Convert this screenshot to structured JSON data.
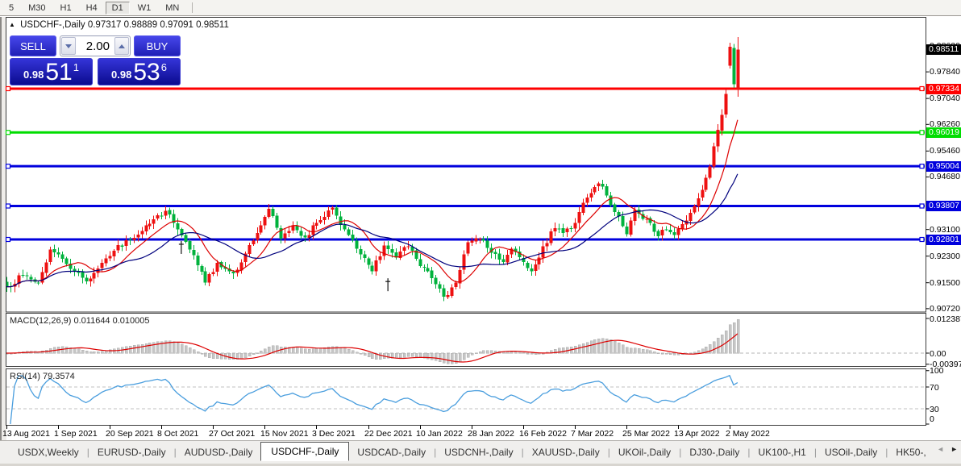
{
  "toolbar": {
    "timeframes": [
      "5",
      "M30",
      "H1",
      "H4",
      "D1",
      "W1",
      "MN"
    ],
    "active_timeframe": "D1"
  },
  "chart": {
    "title_symbol": "USDCHF-,Daily",
    "title_ohlc": "0.97317 0.98889 0.97091 0.98511",
    "collapse_icon": "▲"
  },
  "trade_panel": {
    "sell_label": "SELL",
    "buy_label": "BUY",
    "volume": "2.00",
    "sell_price": {
      "prefix": "0.98",
      "main": "51",
      "pip": "1"
    },
    "buy_price": {
      "prefix": "0.98",
      "main": "53",
      "pip": "6"
    }
  },
  "price_axis": {
    "grid_labels": [
      "0.98620",
      "0.97840",
      "0.97040",
      "0.96260",
      "0.95460",
      "0.94680",
      "0.93100",
      "0.92300",
      "0.91500",
      "0.90720"
    ],
    "badges": [
      {
        "label": "0.98511",
        "value": 0.98511,
        "color": "#000000"
      },
      {
        "label": "0.97334",
        "value": 0.97334,
        "color": "#fe0000"
      },
      {
        "label": "0.96019",
        "value": 0.96019,
        "color": "#00dd00"
      },
      {
        "label": "0.95004",
        "value": 0.95004,
        "color": "#0000dd"
      },
      {
        "label": "0.93807",
        "value": 0.93807,
        "color": "#0000dd"
      },
      {
        "label": "0.92801",
        "value": 0.92801,
        "color": "#0000dd"
      }
    ]
  },
  "macd_panel": {
    "name": "MACD(12,26,9)",
    "values": "0.011644 0.010005",
    "scale_labels": [
      "0.012387",
      "0.00",
      "-0.00397"
    ]
  },
  "rsi_panel": {
    "name": "RSI(14)",
    "value": "79.3574",
    "scale_labels": [
      "100",
      "70",
      "30",
      "0"
    ]
  },
  "time_axis": {
    "labels": [
      "13 Aug 2021",
      "1 Sep 2021",
      "20 Sep 2021",
      "8 Oct 2021",
      "27 Oct 2021",
      "15 Nov 2021",
      "3 Dec 2021",
      "22 Dec 2021",
      "10 Jan 2022",
      "28 Jan 2022",
      "16 Feb 2022",
      "7 Mar 2022",
      "25 Mar 2022",
      "13 Apr 2022",
      "2 May 2022"
    ]
  },
  "tab_bar": {
    "tabs": [
      "USDX,Weekly",
      "EURUSD-,Daily",
      "AUDUSD-,Daily",
      "USDCHF-,Daily",
      "USDCAD-,Daily",
      "USDCNH-,Daily",
      "XAUUSD-,Daily",
      "UKOil-,Daily",
      "DJ30-,Daily",
      "UK100-,H1",
      "USOil-,Daily",
      "HK50-,"
    ],
    "active_index": 3,
    "scroll_left": "◄",
    "scroll_right": "►"
  },
  "chart_data": {
    "type": "candlestick",
    "symbol": "USDCHF-",
    "timeframe": "Daily",
    "current": {
      "open": 0.97317,
      "high": 0.98889,
      "low": 0.97091,
      "close": 0.98511,
      "bid": 0.98511
    },
    "bars": 185,
    "bars_per_time_tick": 13,
    "price_scale_ticks": [
      0.9862,
      0.9784,
      0.9704,
      0.9626,
      0.9546,
      0.9468,
      0.931,
      0.923,
      0.915,
      0.9072
    ],
    "horizontal_lines": [
      {
        "price": 0.97334,
        "color": "#fe0000",
        "width": 3
      },
      {
        "price": 0.96019,
        "color": "#00dd00",
        "width": 3
      },
      {
        "price": 0.95004,
        "color": "#0000dd",
        "width": 3
      },
      {
        "price": 0.93807,
        "color": "#0000dd",
        "width": 3
      },
      {
        "price": 0.92801,
        "color": "#0000dd",
        "width": 3
      }
    ],
    "moving_averages": [
      {
        "period": 10,
        "color": "#dd0000"
      },
      {
        "period": 21,
        "color": "#00007d"
      }
    ],
    "macd": {
      "fast": 12,
      "slow": 26,
      "signal": 9,
      "current_macd": 0.011644,
      "current_signal": 0.010005,
      "scale_max": 0.012387,
      "scale_min": -0.00397
    },
    "rsi": {
      "period": 14,
      "current": 79.3574,
      "levels": [
        70,
        30
      ],
      "scale_min": 0,
      "scale_max": 100
    },
    "swing_points_bar_price": [
      [
        0,
        0.9138
      ],
      [
        4,
        0.9172
      ],
      [
        8,
        0.9148
      ],
      [
        11,
        0.925
      ],
      [
        14,
        0.9222
      ],
      [
        17,
        0.9186
      ],
      [
        20,
        0.9154
      ],
      [
        24,
        0.921
      ],
      [
        27,
        0.9246
      ],
      [
        31,
        0.928
      ],
      [
        35,
        0.9322
      ],
      [
        40,
        0.9366
      ],
      [
        43,
        0.931
      ],
      [
        46,
        0.925
      ],
      [
        50,
        0.915
      ],
      [
        53,
        0.921
      ],
      [
        57,
        0.9178
      ],
      [
        60,
        0.9238
      ],
      [
        63,
        0.93
      ],
      [
        66,
        0.9372
      ],
      [
        69,
        0.9282
      ],
      [
        72,
        0.9322
      ],
      [
        75,
        0.9286
      ],
      [
        78,
        0.933
      ],
      [
        82,
        0.9376
      ],
      [
        85,
        0.931
      ],
      [
        88,
        0.9252
      ],
      [
        92,
        0.9184
      ],
      [
        95,
        0.9262
      ],
      [
        98,
        0.9226
      ],
      [
        101,
        0.926
      ],
      [
        104,
        0.92
      ],
      [
        107,
        0.9164
      ],
      [
        110,
        0.9108
      ],
      [
        113,
        0.915
      ],
      [
        116,
        0.9272
      ],
      [
        119,
        0.9282
      ],
      [
        122,
        0.924
      ],
      [
        125,
        0.9212
      ],
      [
        127,
        0.9252
      ],
      [
        130,
        0.9212
      ],
      [
        132,
        0.9184
      ],
      [
        135,
        0.926
      ],
      [
        138,
        0.9314
      ],
      [
        140,
        0.93
      ],
      [
        143,
        0.933
      ],
      [
        145,
        0.939
      ],
      [
        147,
        0.942
      ],
      [
        149,
        0.9448
      ],
      [
        151,
        0.9412
      ],
      [
        153,
        0.9362
      ],
      [
        156,
        0.9296
      ],
      [
        158,
        0.9368
      ],
      [
        160,
        0.9342
      ],
      [
        162,
        0.933
      ],
      [
        164,
        0.929
      ],
      [
        166,
        0.931
      ],
      [
        168,
        0.9294
      ],
      [
        170,
        0.9326
      ],
      [
        172,
        0.936
      ],
      [
        174,
        0.9404
      ],
      [
        176,
        0.9466
      ],
      [
        177,
        0.95
      ],
      [
        178,
        0.956
      ],
      [
        179,
        0.961
      ],
      [
        180,
        0.9655
      ],
      [
        181,
        0.9718
      ],
      [
        182,
        0.986
      ],
      [
        183,
        0.9747
      ],
      [
        184,
        0.98511
      ]
    ],
    "bar_overrides": {
      "182": [
        0.9802,
        0.9871,
        0.9794,
        0.986
      ],
      "183": [
        0.9856,
        0.9868,
        0.9736,
        0.9747
      ],
      "184": [
        0.97317,
        0.98889,
        0.97091,
        0.98511
      ]
    },
    "object_marks_bar_price": [
      [
        44,
        0.9256
      ],
      [
        96,
        0.9144
      ]
    ],
    "seed": 7,
    "noise": 0.0009,
    "gap": 0.0005,
    "wick": 0.0013,
    "colors": {
      "bull": "#ee1010",
      "bear": "#00b23c",
      "ma_fast": "#dd0000",
      "ma_slow": "#00007d",
      "macd_hist": "#c6c6c6",
      "macd_signal": "#dd0000",
      "rsi_line": "#4a9ede",
      "badge_current": "#000000"
    }
  }
}
